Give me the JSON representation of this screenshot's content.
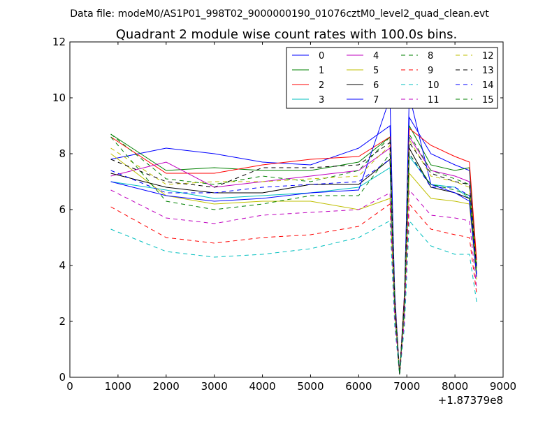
{
  "figure": {
    "supertitle": "Data file: modeM0/AS1P01_998T02_9000000190_01076cztM0_level2_quad_clean.evt",
    "title": "Quadrant 2 module wise count rates with 100.0s bins.",
    "x_offset_text": "+1.87379e8"
  },
  "chart_data": {
    "type": "line",
    "title": "Quadrant 2 module wise count rates with 100.0s bins.",
    "xlabel": "",
    "ylabel": "",
    "xlim": [
      0,
      9000
    ],
    "ylim": [
      0,
      12
    ],
    "x_offset": 187379000,
    "x_ticks": [
      0,
      1000,
      2000,
      3000,
      4000,
      5000,
      6000,
      7000,
      8000,
      9000
    ],
    "y_ticks": [
      0,
      2,
      4,
      6,
      8,
      10,
      12
    ],
    "grid": false,
    "legend": {
      "placement": "top-right",
      "columns": 4
    },
    "x": [
      850,
      2000,
      3000,
      4000,
      5000,
      6000,
      6650,
      6750,
      6850,
      6950,
      7050,
      7500,
      8000,
      8300,
      8450
    ],
    "series": [
      {
        "name": "0",
        "color": "#0000ff",
        "style": "solid",
        "values": [
          7.8,
          8.2,
          8.0,
          7.7,
          7.6,
          8.2,
          9.0,
          3.0,
          0.1,
          3.0,
          9.3,
          8.0,
          7.6,
          7.4,
          4.0
        ]
      },
      {
        "name": "1",
        "color": "#008000",
        "style": "solid",
        "values": [
          8.7,
          7.4,
          7.5,
          7.4,
          7.4,
          7.7,
          8.6,
          2.8,
          0.1,
          2.9,
          9.0,
          7.6,
          7.4,
          7.5,
          4.0
        ]
      },
      {
        "name": "2",
        "color": "#ff0000",
        "style": "solid",
        "values": [
          8.6,
          7.3,
          7.3,
          7.6,
          7.8,
          7.9,
          8.6,
          2.8,
          0.1,
          2.9,
          8.9,
          8.3,
          7.9,
          7.7,
          4.2
        ]
      },
      {
        "name": "3",
        "color": "#00bfbf",
        "style": "solid",
        "values": [
          7.0,
          6.7,
          6.4,
          6.5,
          6.6,
          6.8,
          7.5,
          2.5,
          0.1,
          2.5,
          7.9,
          6.9,
          6.8,
          6.4,
          3.6
        ]
      },
      {
        "name": "4",
        "color": "#bf00bf",
        "style": "solid",
        "values": [
          7.2,
          7.7,
          6.8,
          7.0,
          7.2,
          7.4,
          8.2,
          2.7,
          0.1,
          2.7,
          8.6,
          7.4,
          7.2,
          7.0,
          3.9
        ]
      },
      {
        "name": "5",
        "color": "#bfbf00",
        "style": "solid",
        "values": [
          8.0,
          6.5,
          6.2,
          6.3,
          6.3,
          6.0,
          6.4,
          2.3,
          0.1,
          2.3,
          7.3,
          6.4,
          6.3,
          6.2,
          3.5
        ]
      },
      {
        "name": "6",
        "color": "#000000",
        "style": "solid",
        "values": [
          7.3,
          6.8,
          6.6,
          6.6,
          6.9,
          6.9,
          7.8,
          2.5,
          0.1,
          2.6,
          8.2,
          6.8,
          6.6,
          6.4,
          3.7
        ]
      },
      {
        "name": "7",
        "color": "#0000ff",
        "style": "solid",
        "values": [
          7.0,
          6.5,
          6.3,
          6.4,
          6.6,
          6.7,
          10.0,
          2.6,
          0.1,
          2.6,
          10.1,
          6.9,
          6.6,
          6.3,
          3.6
        ]
      },
      {
        "name": "8",
        "color": "#008000",
        "style": "dashed",
        "values": [
          8.7,
          7.1,
          6.9,
          7.2,
          7.0,
          7.4,
          8.6,
          2.7,
          0.1,
          2.8,
          8.7,
          7.4,
          7.1,
          6.9,
          3.8
        ]
      },
      {
        "name": "9",
        "color": "#ff0000",
        "style": "dashed",
        "values": [
          6.1,
          5.0,
          4.8,
          5.0,
          5.1,
          5.4,
          6.2,
          2.0,
          0.1,
          2.0,
          6.2,
          5.3,
          5.1,
          5.0,
          3.0
        ]
      },
      {
        "name": "10",
        "color": "#00bfbf",
        "style": "dashed",
        "values": [
          5.3,
          4.5,
          4.3,
          4.4,
          4.6,
          5.0,
          5.6,
          1.8,
          0.1,
          1.8,
          5.6,
          4.7,
          4.4,
          4.4,
          2.7
        ]
      },
      {
        "name": "11",
        "color": "#bf00bf",
        "style": "dashed",
        "values": [
          6.7,
          5.7,
          5.5,
          5.8,
          5.9,
          6.0,
          6.6,
          2.1,
          0.1,
          2.1,
          6.7,
          5.8,
          5.7,
          5.6,
          3.2
        ]
      },
      {
        "name": "12",
        "color": "#bfbf00",
        "style": "dashed",
        "values": [
          8.2,
          6.9,
          7.0,
          7.0,
          7.1,
          7.2,
          8.3,
          2.6,
          0.1,
          2.7,
          8.5,
          7.2,
          7.0,
          6.8,
          3.9
        ]
      },
      {
        "name": "13",
        "color": "#000000",
        "style": "dashed",
        "values": [
          7.8,
          7.0,
          6.8,
          7.5,
          7.5,
          7.6,
          8.4,
          2.7,
          0.1,
          2.8,
          8.4,
          7.3,
          7.0,
          6.9,
          3.9
        ]
      },
      {
        "name": "14",
        "color": "#0000ff",
        "style": "dashed",
        "values": [
          7.4,
          6.6,
          6.6,
          6.8,
          6.9,
          7.0,
          7.8,
          2.5,
          0.1,
          2.6,
          8.0,
          6.8,
          6.8,
          6.5,
          3.7
        ]
      },
      {
        "name": "15",
        "color": "#008000",
        "style": "dashed",
        "values": [
          8.6,
          6.3,
          6.0,
          6.2,
          6.5,
          6.5,
          8.0,
          2.5,
          0.1,
          2.5,
          8.0,
          6.9,
          6.7,
          6.5,
          3.7
        ]
      }
    ]
  }
}
